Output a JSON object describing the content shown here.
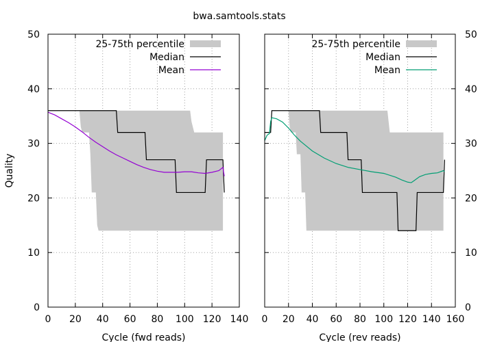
{
  "title": "bwa.samtools.stats",
  "colors": {
    "band": "#c8c8c8",
    "median": "#000000",
    "mean_fwd": "#9400d3",
    "mean_rev": "#009e73"
  },
  "chart_data": [
    {
      "type": "line",
      "panel": "left",
      "xlabel": "Cycle (fwd reads)",
      "ylabel": "Quality",
      "xlim": [
        0,
        140
      ],
      "ylim": [
        0,
        50
      ],
      "xticks": [
        0,
        20,
        40,
        60,
        80,
        100,
        120,
        140
      ],
      "yticks": [
        0,
        10,
        20,
        30,
        40,
        50
      ],
      "grid": true,
      "legend_position": "top-right",
      "legend": [
        "25-75th percentile",
        "Median",
        "Mean"
      ],
      "series": [
        {
          "name": "25-75th percentile",
          "kind": "band",
          "x": [
            0,
            23,
            24,
            25,
            30,
            31,
            32,
            35,
            36,
            37,
            104,
            105,
            106,
            107,
            128
          ],
          "low": [
            36,
            36,
            33,
            32,
            32,
            28,
            21,
            21,
            15,
            14,
            14,
            14,
            14,
            14,
            14
          ],
          "high": [
            36,
            36,
            36,
            36,
            36,
            36,
            36,
            36,
            36,
            36,
            36,
            34,
            33,
            32,
            32
          ]
        },
        {
          "name": "Median",
          "kind": "line",
          "x": [
            0,
            50,
            51,
            71,
            72,
            93,
            94,
            115,
            116,
            128,
            129
          ],
          "y": [
            36,
            36,
            32,
            32,
            27,
            27,
            21,
            21,
            27,
            27,
            21
          ]
        },
        {
          "name": "Mean",
          "kind": "line",
          "x": [
            0,
            5,
            10,
            15,
            20,
            25,
            30,
            35,
            40,
            45,
            50,
            55,
            60,
            65,
            70,
            75,
            80,
            85,
            90,
            95,
            100,
            105,
            110,
            115,
            120,
            125,
            128,
            129
          ],
          "y": [
            35.7,
            35.2,
            34.5,
            33.8,
            33.0,
            32.1,
            31.1,
            30.2,
            29.4,
            28.6,
            27.9,
            27.3,
            26.7,
            26.1,
            25.6,
            25.2,
            24.9,
            24.7,
            24.7,
            24.7,
            24.8,
            24.8,
            24.6,
            24.5,
            24.7,
            25.0,
            25.6,
            24.0
          ]
        }
      ]
    },
    {
      "type": "line",
      "panel": "right",
      "xlabel": "Cycle (rev reads)",
      "ylabel": "",
      "xlim": [
        0,
        160
      ],
      "ylim": [
        0,
        50
      ],
      "xticks": [
        0,
        20,
        40,
        60,
        80,
        100,
        120,
        140,
        160
      ],
      "yticks": [
        0,
        10,
        20,
        30,
        40,
        50
      ],
      "grid": true,
      "legend_position": "top-right",
      "legend": [
        "25-75th percentile",
        "Median",
        "Mean"
      ],
      "series": [
        {
          "name": "25-75th percentile",
          "kind": "band",
          "x": [
            0,
            20,
            21,
            22,
            26,
            27,
            30,
            31,
            34,
            35,
            103,
            104,
            105,
            150
          ],
          "low": [
            36,
            36,
            33,
            32,
            32,
            28,
            28,
            21,
            21,
            14,
            14,
            14,
            14,
            14
          ],
          "high": [
            36,
            36,
            36,
            36,
            36,
            36,
            36,
            36,
            36,
            36,
            36,
            34,
            32,
            32
          ]
        },
        {
          "name": "Median",
          "kind": "line",
          "x": [
            0,
            5,
            6,
            46,
            47,
            69,
            70,
            81,
            82,
            111,
            112,
            127,
            128,
            150,
            151
          ],
          "y": [
            32,
            32,
            36,
            36,
            32,
            32,
            27,
            27,
            21,
            21,
            14,
            14,
            21,
            21,
            27
          ]
        },
        {
          "name": "Mean",
          "kind": "line",
          "x": [
            0,
            2,
            4,
            5,
            6,
            10,
            15,
            20,
            25,
            30,
            35,
            40,
            50,
            60,
            70,
            80,
            90,
            100,
            110,
            115,
            120,
            123,
            125,
            130,
            135,
            140,
            145,
            150,
            151
          ],
          "y": [
            30.5,
            31.5,
            31.8,
            34.0,
            34.7,
            34.5,
            33.9,
            32.8,
            31.5,
            30.4,
            29.5,
            28.6,
            27.3,
            26.3,
            25.6,
            25.2,
            24.8,
            24.5,
            23.8,
            23.3,
            22.9,
            22.8,
            23.1,
            23.9,
            24.3,
            24.5,
            24.6,
            25.0,
            24.8
          ]
        }
      ]
    }
  ]
}
